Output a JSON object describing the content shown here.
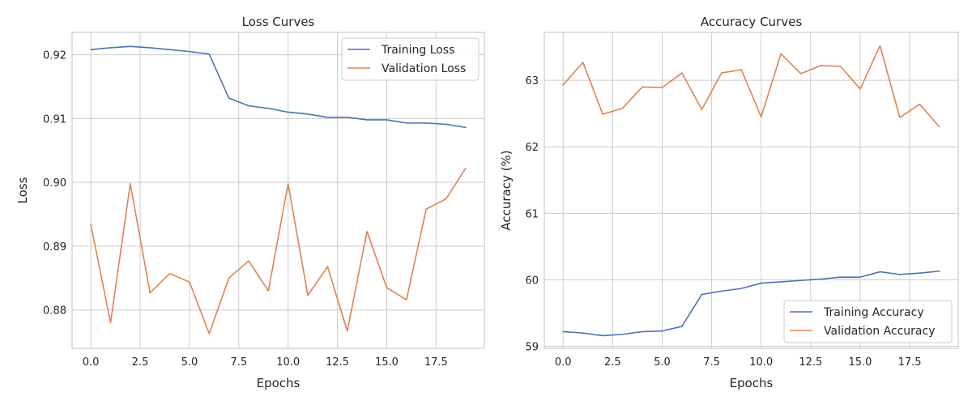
{
  "colors": {
    "training": "#4c72b0",
    "validation": "#dd8452"
  },
  "chart_data": [
    {
      "type": "line",
      "title": "Loss Curves",
      "xlabel": "Epochs",
      "ylabel": "Loss",
      "grid": true,
      "legend_position": "top-right",
      "xlim": [
        -0.95,
        19.95
      ],
      "ylim": [
        0.874,
        0.9235
      ],
      "xticks": [
        0,
        2.5,
        5,
        7.5,
        10,
        12.5,
        15,
        17.5
      ],
      "xtick_labels": [
        "0.0",
        "2.5",
        "5.0",
        "7.5",
        "10.0",
        "12.5",
        "15.0",
        "17.5"
      ],
      "yticks": [
        0.88,
        0.89,
        0.9,
        0.91,
        0.92
      ],
      "ytick_labels": [
        "0.88",
        "0.89",
        "0.90",
        "0.91",
        "0.92"
      ],
      "x": [
        0,
        1,
        2,
        3,
        4,
        5,
        6,
        7,
        8,
        9,
        10,
        11,
        12,
        13,
        14,
        15,
        16,
        17,
        18,
        19
      ],
      "series": [
        {
          "name": "Training Loss",
          "color": "#4c72b0",
          "values": [
            0.9208,
            0.9211,
            0.9213,
            0.9211,
            0.9208,
            0.9205,
            0.9201,
            0.9132,
            0.912,
            0.9116,
            0.911,
            0.9107,
            0.9102,
            0.9102,
            0.9098,
            0.9098,
            0.9093,
            0.9093,
            0.9091,
            0.9086
          ]
        },
        {
          "name": "Validation Loss",
          "color": "#dd8452",
          "values": [
            0.8934,
            0.878,
            0.8998,
            0.8827,
            0.8857,
            0.8844,
            0.8763,
            0.885,
            0.8877,
            0.883,
            0.8998,
            0.8823,
            0.8868,
            0.8767,
            0.8923,
            0.8835,
            0.8816,
            0.8958,
            0.8974,
            0.9022
          ]
        }
      ]
    },
    {
      "type": "line",
      "title": "Accuracy Curves",
      "xlabel": "Epochs",
      "ylabel": "Accuracy (%)",
      "grid": true,
      "legend_position": "bottom-right",
      "xlim": [
        -0.95,
        19.95
      ],
      "ylim": [
        58.97,
        63.72
      ],
      "xticks": [
        0,
        2.5,
        5,
        7.5,
        10,
        12.5,
        15,
        17.5
      ],
      "xtick_labels": [
        "0.0",
        "2.5",
        "5.0",
        "7.5",
        "10.0",
        "12.5",
        "15.0",
        "17.5"
      ],
      "yticks": [
        59,
        60,
        61,
        62,
        63
      ],
      "ytick_labels": [
        "59",
        "60",
        "61",
        "62",
        "63"
      ],
      "x": [
        0,
        1,
        2,
        3,
        4,
        5,
        6,
        7,
        8,
        9,
        10,
        11,
        12,
        13,
        14,
        15,
        16,
        17,
        18,
        19
      ],
      "series": [
        {
          "name": "Training Accuracy",
          "color": "#4c72b0",
          "values": [
            59.22,
            59.2,
            59.16,
            59.18,
            59.22,
            59.23,
            59.3,
            59.78,
            59.83,
            59.87,
            59.95,
            59.97,
            59.99,
            60.01,
            60.04,
            60.04,
            60.12,
            60.08,
            60.1,
            60.13
          ]
        },
        {
          "name": "Validation Accuracy",
          "color": "#dd8452",
          "values": [
            62.93,
            63.27,
            62.49,
            62.58,
            62.9,
            62.89,
            63.11,
            62.56,
            63.11,
            63.16,
            62.45,
            63.4,
            63.1,
            63.22,
            63.21,
            62.87,
            63.52,
            62.44,
            62.64,
            62.3
          ]
        }
      ]
    }
  ]
}
